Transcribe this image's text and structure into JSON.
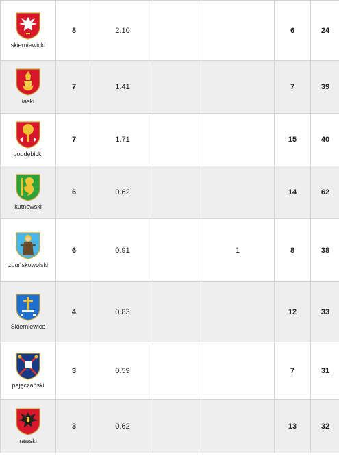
{
  "rows": [
    {
      "name": "skierniewicki",
      "rank": "8",
      "value": "2.10",
      "extra": "",
      "green": "6",
      "pink": "24",
      "icon": "eagle-crest-icon"
    },
    {
      "name": "łaski",
      "rank": "7",
      "value": "1.41",
      "extra": "",
      "green": "7",
      "pink": "39",
      "icon": "mitre-crest-icon"
    },
    {
      "name": "poddębicki",
      "rank": "7",
      "value": "1.71",
      "extra": "",
      "green": "15",
      "pink": "40",
      "icon": "oak-crest-icon"
    },
    {
      "name": "kutnowski",
      "rank": "6",
      "value": "0.62",
      "extra": "",
      "green": "14",
      "pink": "62",
      "icon": "griffin-crest-icon"
    },
    {
      "name": "zduńskowolski",
      "rank": "6",
      "value": "0.91",
      "extra": "1",
      "green": "8",
      "pink": "38",
      "icon": "saint-crest-icon"
    },
    {
      "name": "Skierniewice",
      "rank": "4",
      "value": "0.83",
      "extra": "",
      "green": "12",
      "pink": "33",
      "icon": "cross-crest-icon"
    },
    {
      "name": "pajęczański",
      "rank": "3",
      "value": "0.59",
      "extra": "",
      "green": "7",
      "pink": "31",
      "icon": "crossed-keys-crest-icon"
    },
    {
      "name": "rawski",
      "rank": "3",
      "value": "0.62",
      "extra": "",
      "green": "13",
      "pink": "32",
      "icon": "black-eagle-crest-icon"
    }
  ]
}
